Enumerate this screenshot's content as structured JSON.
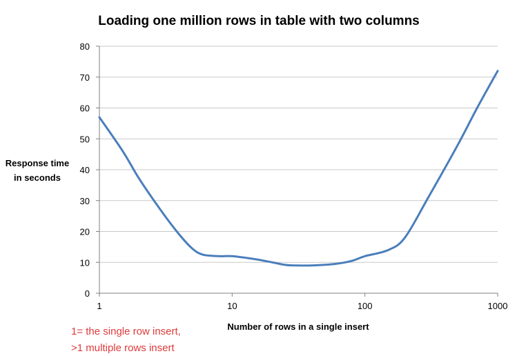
{
  "chart_data": {
    "type": "line",
    "title": "Loading one million rows in table with two columns",
    "xlabel": "Number of rows in a single insert",
    "ylabel": [
      "Response time",
      "in seconds"
    ],
    "x_scale": "log",
    "xlim": [
      1,
      1000
    ],
    "ylim": [
      0,
      80
    ],
    "x_ticks": [
      1,
      10,
      100,
      1000
    ],
    "x_tick_labels": [
      "1",
      "10",
      "100",
      "1000"
    ],
    "y_ticks": [
      0,
      10,
      20,
      30,
      40,
      50,
      60,
      70,
      80
    ],
    "y_tick_labels": [
      "0",
      "10",
      "20",
      "30",
      "40",
      "50",
      "60",
      "70",
      "80"
    ],
    "grid": true,
    "legend": "none",
    "series": [
      {
        "color": "#4a7ebb",
        "x": [
          1,
          1.5,
          2,
          3,
          4,
          5,
          6,
          8,
          10,
          15,
          20,
          25,
          30,
          40,
          60,
          80,
          100,
          150,
          200,
          300,
          500,
          700,
          1000
        ],
        "y": [
          57,
          46,
          37,
          26,
          19,
          14.5,
          12.5,
          12,
          12,
          11,
          10,
          9.2,
          9,
          9,
          9.5,
          10.5,
          12,
          14,
          18,
          31,
          48,
          60,
          72
        ]
      }
    ],
    "annotations": [
      "1= the single row  insert,",
      ">1 multiple rows insert"
    ],
    "annotation_color": "#e03a3a"
  }
}
